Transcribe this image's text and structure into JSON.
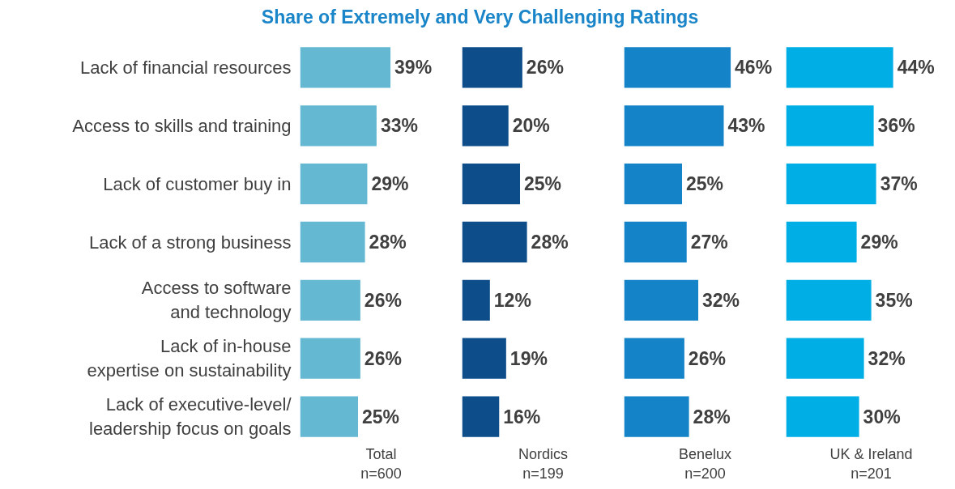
{
  "chart_data": [
    {
      "type": "bar",
      "orientation": "horizontal",
      "title": "Share of Extremely and Very Challenging Ratings",
      "xlabel": "Total\nn=600",
      "categories": [
        "Lack of financial resources",
        "Access to skills and training",
        "Lack of customer buy in",
        "Lack of a strong business",
        "Access to software\nand technology",
        "Lack of in-house\nexpertise on sustainability",
        "Lack of executive-level/\nleadership focus on goals"
      ],
      "values": [
        39,
        33,
        29,
        28,
        26,
        26,
        25
      ],
      "value_labels": [
        "39%",
        "33%",
        "29%",
        "28%",
        "26%",
        "26%",
        "25%"
      ],
      "color": "#65b8d2",
      "tick_labels": "y"
    },
    {
      "type": "bar",
      "orientation": "horizontal",
      "xlabel": "Nordics\nn=199",
      "values": [
        26,
        20,
        25,
        28,
        12,
        19,
        16
      ],
      "value_labels": [
        "26%",
        "20%",
        "25%",
        "28%",
        "12%",
        "19%",
        "16%"
      ],
      "color": "#0d4d8a",
      "tick_labels": false
    },
    {
      "type": "bar",
      "orientation": "horizontal",
      "xlabel": "Benelux\nn=200",
      "values": [
        46,
        43,
        25,
        27,
        32,
        26,
        28
      ],
      "value_labels": [
        "46%",
        "43%",
        "25%",
        "27%",
        "32%",
        "26%",
        "28%"
      ],
      "color": "#1583c8",
      "tick_labels": false
    },
    {
      "type": "bar",
      "orientation": "horizontal",
      "xlabel": "UK & Ireland\nn=201",
      "values": [
        44,
        36,
        37,
        29,
        35,
        32,
        30
      ],
      "value_labels": [
        "44%",
        "36%",
        "37%",
        "29%",
        "35%",
        "32%",
        "30%"
      ],
      "color": "#00aee6",
      "tick_labels": false
    }
  ]
}
